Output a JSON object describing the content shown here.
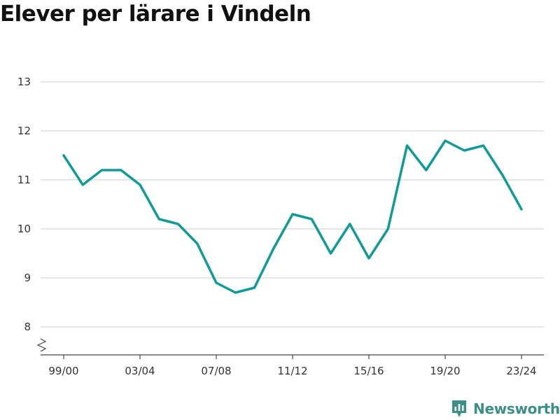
{
  "chart_data": {
    "type": "line",
    "title": "Elever per lärare i Vindeln",
    "xlabel": "",
    "ylabel": "",
    "categories": [
      "99/00",
      "00/01",
      "01/02",
      "02/03",
      "03/04",
      "04/05",
      "05/06",
      "06/07",
      "07/08",
      "08/09",
      "09/10",
      "10/11",
      "11/12",
      "12/13",
      "13/14",
      "14/15",
      "15/16",
      "16/17",
      "17/18",
      "18/19",
      "19/20",
      "20/21",
      "21/22",
      "22/23",
      "23/24"
    ],
    "x_tick_labels": [
      "99/00",
      "03/04",
      "07/08",
      "11/12",
      "15/16",
      "19/20",
      "23/24"
    ],
    "y_ticks": [
      8,
      9,
      10,
      11,
      12,
      13
    ],
    "ylim": [
      7.4,
      13
    ],
    "grid": true,
    "axis_break": true,
    "series": [
      {
        "values": [
          11.5,
          10.9,
          11.2,
          11.2,
          10.9,
          10.2,
          10.1,
          9.7,
          8.9,
          8.7,
          8.8,
          9.6,
          10.3,
          10.2,
          9.5,
          10.1,
          9.4,
          10.0,
          11.7,
          11.2,
          11.8,
          11.6,
          11.7,
          11.1,
          10.4
        ],
        "color": "#129b96"
      }
    ]
  },
  "brand": {
    "name": "Newsworthy",
    "color": "#3b8f86",
    "icon": "newsworthy-logo-icon"
  }
}
